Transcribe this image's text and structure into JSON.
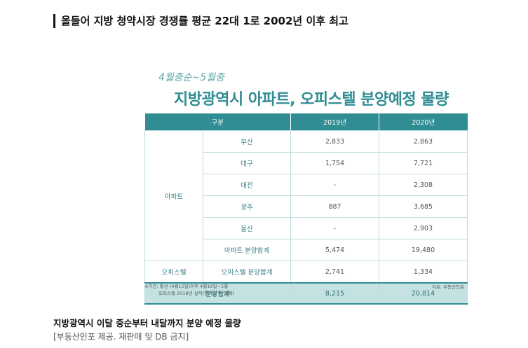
{
  "headline": "올들어 지방 청약시장 경쟁률 평균 22대 1로 2002년 이후 최고",
  "figure": {
    "period": "4월중순~5월중",
    "title": "지방광역시 아파트, 오피스텔 분양예정 물량",
    "table": {
      "headers": [
        "구분",
        "2019년",
        "2020년"
      ],
      "apt_group": "아파트",
      "officetel_group": "오피스텔",
      "rows": [
        {
          "label": "부산",
          "y2019": "2,833",
          "y2020": "2,863"
        },
        {
          "label": "대구",
          "y2019": "1,754",
          "y2020": "7,721"
        },
        {
          "label": "대전",
          "y2019": "-",
          "y2020": "2,308"
        },
        {
          "label": "광주",
          "y2019": "887",
          "y2020": "3,685"
        },
        {
          "label": "울산",
          "y2019": "-",
          "y2020": "2,903"
        },
        {
          "label": "아파트 분양합계",
          "y2019": "5,474",
          "y2020": "19,480"
        },
        {
          "label": "오피스텔 분양합계",
          "y2019": "2,741",
          "y2020": "1,334"
        }
      ],
      "total": {
        "label": "분양합계",
        "y2019": "8,215",
        "y2020": "20,814"
      }
    },
    "note_line1": "※기간: 총선 (4월15일)이후 4월16일~5월",
    "note_line2": "오피스텔 2019년 실적(청약홈 등 업계)",
    "source": "자료: 부동산인포"
  },
  "caption": "지방광역시 이달 중순부터 내달까지 분양 예정 물량",
  "credit": "[부동산인포 제공. 재판매 및 DB 금지]"
}
